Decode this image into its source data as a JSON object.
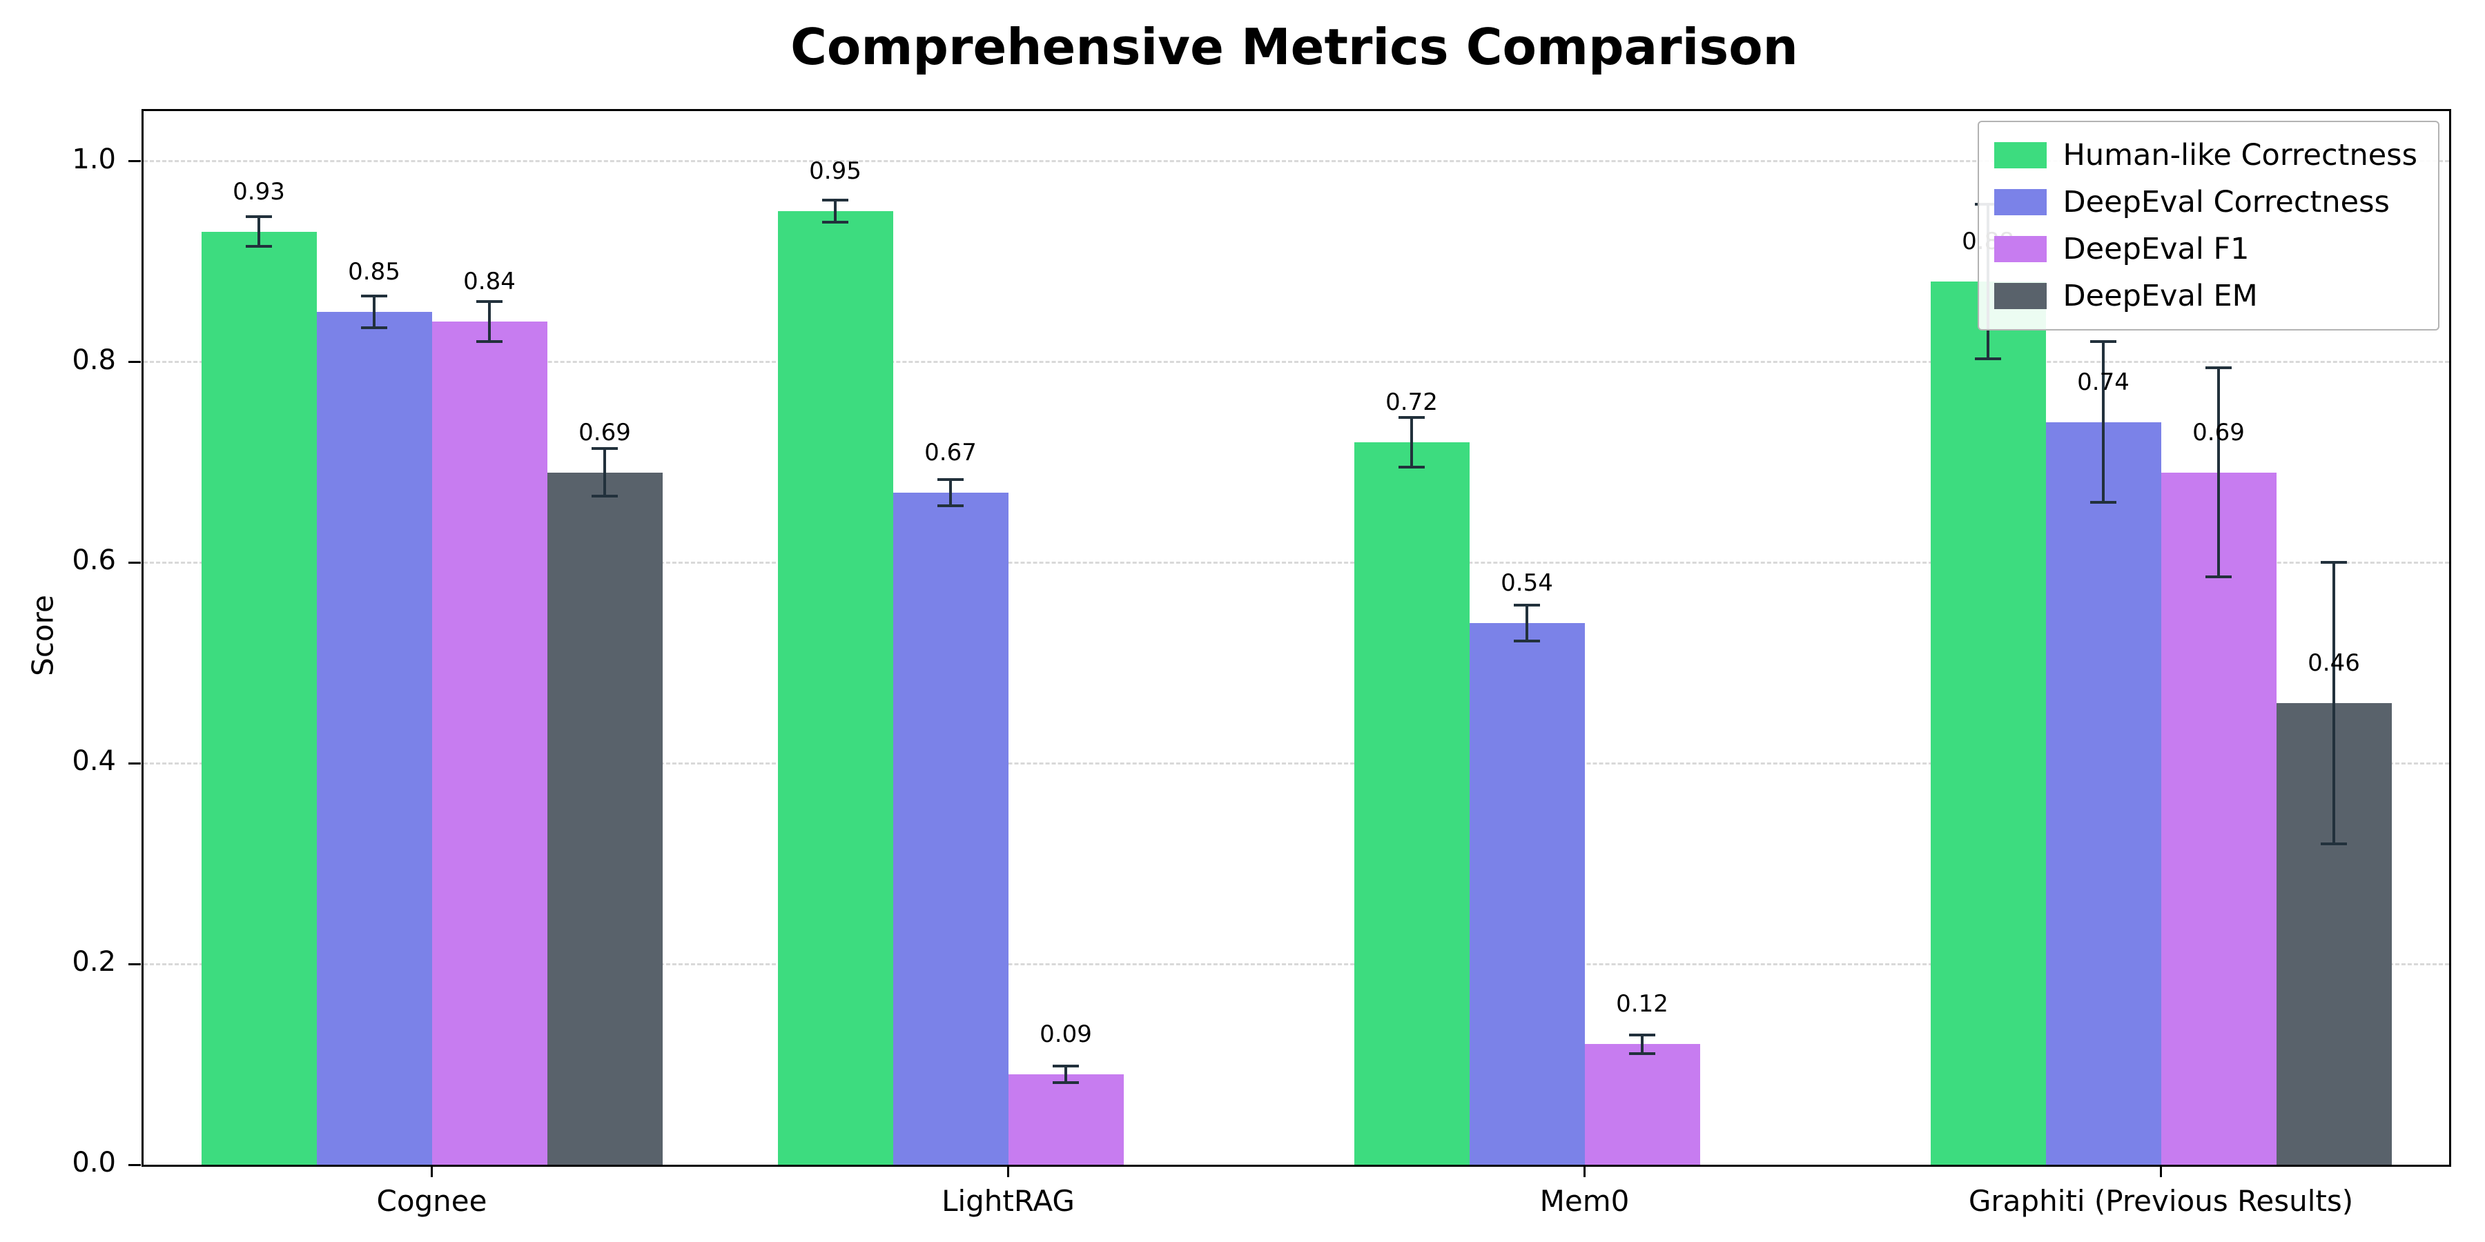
{
  "chart_data": {
    "type": "bar",
    "title": "Comprehensive Metrics Comparison",
    "xlabel": "",
    "ylabel": "Score",
    "ylim": [
      0,
      1.05
    ],
    "yticks": [
      0.0,
      0.2,
      0.4,
      0.6,
      0.8,
      1.0
    ],
    "grid": "horizontal-dashed",
    "legend_position": "upper-right",
    "bar_labels": true,
    "categories": [
      "Cognee",
      "LightRAG",
      "Mem0",
      "Graphiti (Previous Results)"
    ],
    "series": [
      {
        "name": "Human-like Correctness",
        "color": "#3ddc7f",
        "values": [
          0.93,
          0.95,
          0.72,
          0.88
        ],
        "errors": [
          0.015,
          0.011,
          0.025,
          0.077
        ]
      },
      {
        "name": "DeepEval Correctness",
        "color": "#7b82e8",
        "values": [
          0.85,
          0.67,
          0.54,
          0.74
        ],
        "errors": [
          0.016,
          0.013,
          0.018,
          0.08
        ]
      },
      {
        "name": "DeepEval F1",
        "color": "#c77cf0",
        "values": [
          0.84,
          0.09,
          0.12,
          0.69
        ],
        "errors": [
          0.02,
          0.008,
          0.009,
          0.104
        ]
      },
      {
        "name": "DeepEval EM",
        "color": "#59626b",
        "values": [
          0.69,
          0.0,
          0.0,
          0.46
        ],
        "errors": [
          0.024,
          0.0,
          0.0,
          0.14
        ]
      }
    ]
  },
  "colors": {
    "errorbar": "#22313c",
    "grid": "#d9d9d9",
    "axis": "#000000",
    "background": "#ffffff"
  }
}
